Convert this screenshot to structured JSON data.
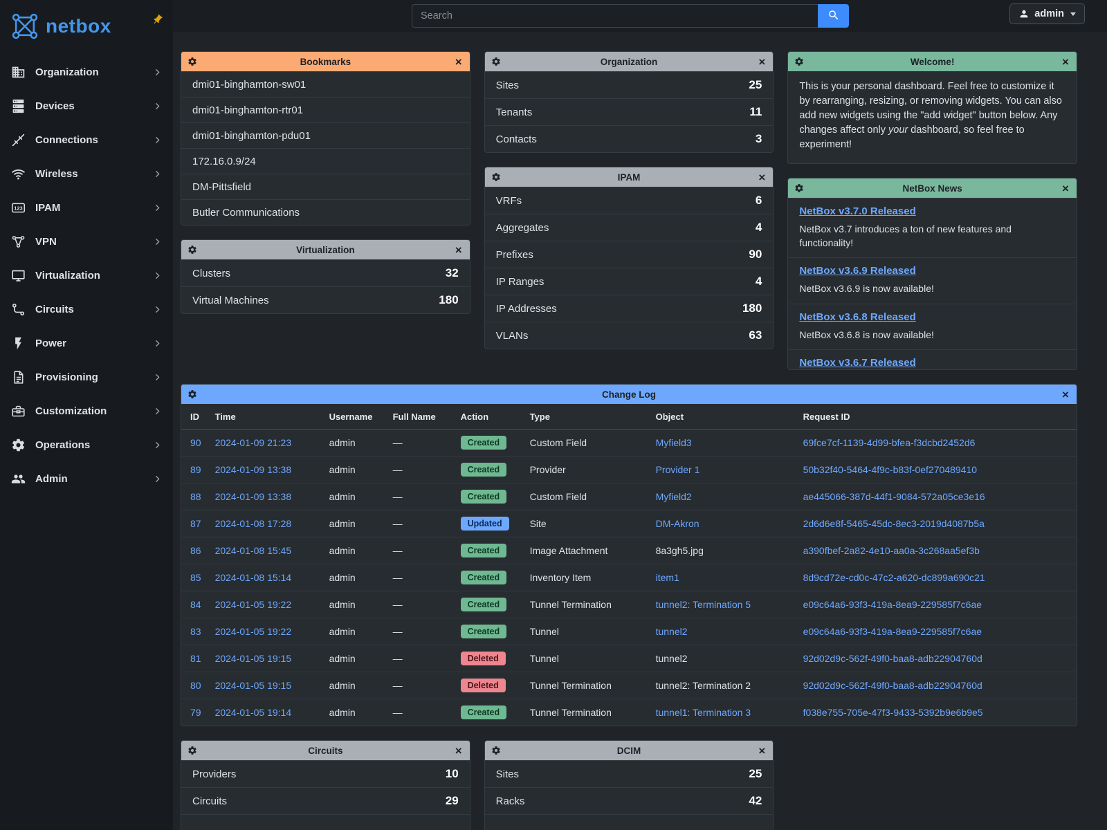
{
  "brand": {
    "name": "netbox"
  },
  "topbar": {
    "search_placeholder": "Search",
    "user": "admin"
  },
  "sidebar": {
    "items": [
      {
        "label": "Organization",
        "icon": "building-icon"
      },
      {
        "label": "Devices",
        "icon": "server-icon"
      },
      {
        "label": "Connections",
        "icon": "cable-icon"
      },
      {
        "label": "Wireless",
        "icon": "wifi-icon"
      },
      {
        "label": "IPAM",
        "icon": "counter-icon"
      },
      {
        "label": "VPN",
        "icon": "graph-icon"
      },
      {
        "label": "Virtualization",
        "icon": "monitor-icon"
      },
      {
        "label": "Circuits",
        "icon": "transit-icon"
      },
      {
        "label": "Power",
        "icon": "flash-icon"
      },
      {
        "label": "Provisioning",
        "icon": "document-icon"
      },
      {
        "label": "Customization",
        "icon": "toolbox-icon"
      },
      {
        "label": "Operations",
        "icon": "cogs-icon"
      },
      {
        "label": "Admin",
        "icon": "users-icon"
      }
    ]
  },
  "widgets": {
    "bookmarks": {
      "title": "Bookmarks",
      "items": [
        "dmi01-binghamton-sw01",
        "dmi01-binghamton-rtr01",
        "dmi01-binghamton-pdu01",
        "172.16.0.9/24",
        "DM-Pittsfield",
        "Butler Communications"
      ]
    },
    "organization": {
      "title": "Organization",
      "stats": [
        {
          "label": "Sites",
          "value": "25"
        },
        {
          "label": "Tenants",
          "value": "11"
        },
        {
          "label": "Contacts",
          "value": "3"
        }
      ]
    },
    "welcome": {
      "title": "Welcome!",
      "p1": "This is your personal dashboard. Feel free to customize it by rearranging, resizing, or removing widgets. You can also add new widgets using the \"add widget\" button below. Any changes affect only ",
      "italic": "your",
      "p2": " dashboard, so feel free to experiment!"
    },
    "virtualization": {
      "title": "Virtualization",
      "stats": [
        {
          "label": "Clusters",
          "value": "32"
        },
        {
          "label": "Virtual Machines",
          "value": "180"
        }
      ]
    },
    "ipam": {
      "title": "IPAM",
      "stats": [
        {
          "label": "VRFs",
          "value": "6"
        },
        {
          "label": "Aggregates",
          "value": "4"
        },
        {
          "label": "Prefixes",
          "value": "90"
        },
        {
          "label": "IP Ranges",
          "value": "4"
        },
        {
          "label": "IP Addresses",
          "value": "180"
        },
        {
          "label": "VLANs",
          "value": "63"
        }
      ]
    },
    "news": {
      "title": "NetBox News",
      "items": [
        {
          "title": "NetBox v3.7.0 Released",
          "desc": "NetBox v3.7 introduces a ton of new features and functionality!"
        },
        {
          "title": "NetBox v3.6.9 Released",
          "desc": "NetBox v3.6.9 is now available!"
        },
        {
          "title": "NetBox v3.6.8 Released",
          "desc": "NetBox v3.6.8 is now available!"
        },
        {
          "title": "NetBox v3.6.7 Released"
        }
      ]
    },
    "changelog": {
      "title": "Change Log",
      "columns": [
        "ID",
        "Time",
        "Username",
        "Full Name",
        "Action",
        "Type",
        "Object",
        "Request ID"
      ],
      "rows": [
        {
          "id": "90",
          "time": "2024-01-09 21:23",
          "username": "admin",
          "full_name": "—",
          "action": "Created",
          "action_variant": "created",
          "type": "Custom Field",
          "object": "Myfield3",
          "object_link": true,
          "request_id": "69fce7cf-1139-4d99-bfea-f3dcbd2452d6"
        },
        {
          "id": "89",
          "time": "2024-01-09 13:38",
          "username": "admin",
          "full_name": "—",
          "action": "Created",
          "action_variant": "created",
          "type": "Provider",
          "object": "Provider 1",
          "object_link": true,
          "request_id": "50b32f40-5464-4f9c-b83f-0ef270489410"
        },
        {
          "id": "88",
          "time": "2024-01-09 13:38",
          "username": "admin",
          "full_name": "—",
          "action": "Created",
          "action_variant": "created",
          "type": "Custom Field",
          "object": "Myfield2",
          "object_link": true,
          "request_id": "ae445066-387d-44f1-9084-572a05ce3e16"
        },
        {
          "id": "87",
          "time": "2024-01-08 17:28",
          "username": "admin",
          "full_name": "—",
          "action": "Updated",
          "action_variant": "updated",
          "type": "Site",
          "object": "DM-Akron",
          "object_link": true,
          "request_id": "2d6d6e8f-5465-45dc-8ec3-2019d4087b5a"
        },
        {
          "id": "86",
          "time": "2024-01-08 15:45",
          "username": "admin",
          "full_name": "—",
          "action": "Created",
          "action_variant": "created",
          "type": "Image Attachment",
          "object": "8a3gh5.jpg",
          "object_link": false,
          "request_id": "a390fbef-2a82-4e10-aa0a-3c268aa5ef3b"
        },
        {
          "id": "85",
          "time": "2024-01-08 15:14",
          "username": "admin",
          "full_name": "—",
          "action": "Created",
          "action_variant": "created",
          "type": "Inventory Item",
          "object": "item1",
          "object_link": true,
          "request_id": "8d9cd72e-cd0c-47c2-a620-dc899a690c21"
        },
        {
          "id": "84",
          "time": "2024-01-05 19:22",
          "username": "admin",
          "full_name": "—",
          "action": "Created",
          "action_variant": "created",
          "type": "Tunnel Termination",
          "object": "tunnel2: Termination 5",
          "object_link": true,
          "request_id": "e09c64a6-93f3-419a-8ea9-229585f7c6ae"
        },
        {
          "id": "83",
          "time": "2024-01-05 19:22",
          "username": "admin",
          "full_name": "—",
          "action": "Created",
          "action_variant": "created",
          "type": "Tunnel",
          "object": "tunnel2",
          "object_link": true,
          "request_id": "e09c64a6-93f3-419a-8ea9-229585f7c6ae"
        },
        {
          "id": "81",
          "time": "2024-01-05 19:15",
          "username": "admin",
          "full_name": "—",
          "action": "Deleted",
          "action_variant": "deleted",
          "type": "Tunnel",
          "object": "tunnel2",
          "object_link": false,
          "request_id": "92d02d9c-562f-49f0-baa8-adb22904760d"
        },
        {
          "id": "80",
          "time": "2024-01-05 19:15",
          "username": "admin",
          "full_name": "—",
          "action": "Deleted",
          "action_variant": "deleted",
          "type": "Tunnel Termination",
          "object": "tunnel2: Termination 2",
          "object_link": false,
          "request_id": "92d02d9c-562f-49f0-baa8-adb22904760d"
        },
        {
          "id": "79",
          "time": "2024-01-05 19:14",
          "username": "admin",
          "full_name": "—",
          "action": "Created",
          "action_variant": "created",
          "type": "Tunnel Termination",
          "object": "tunnel1: Termination 3",
          "object_link": true,
          "request_id": "f038e755-705e-47f3-9433-5392b9e6b9e5"
        }
      ]
    },
    "circuits": {
      "title": "Circuits",
      "stats": [
        {
          "label": "Providers",
          "value": "10"
        },
        {
          "label": "Circuits",
          "value": "29"
        }
      ]
    },
    "dcim": {
      "title": "DCIM",
      "stats": [
        {
          "label": "Sites",
          "value": "25"
        },
        {
          "label": "Racks",
          "value": "42"
        }
      ]
    }
  },
  "colors": {
    "brand_blue": "#4496eb",
    "accent_blue": "#3d8bfd",
    "link_blue": "#6ea8fe",
    "header_gray": "#a9afb5",
    "header_orange": "#fcaa74",
    "header_green": "#79b89c",
    "header_blue": "#6ea8fe",
    "badge_created_bg": "#6fb992",
    "badge_updated_bg": "#6ea8fe",
    "badge_deleted_bg": "#ee8690",
    "pin_gold": "#d9a514"
  }
}
